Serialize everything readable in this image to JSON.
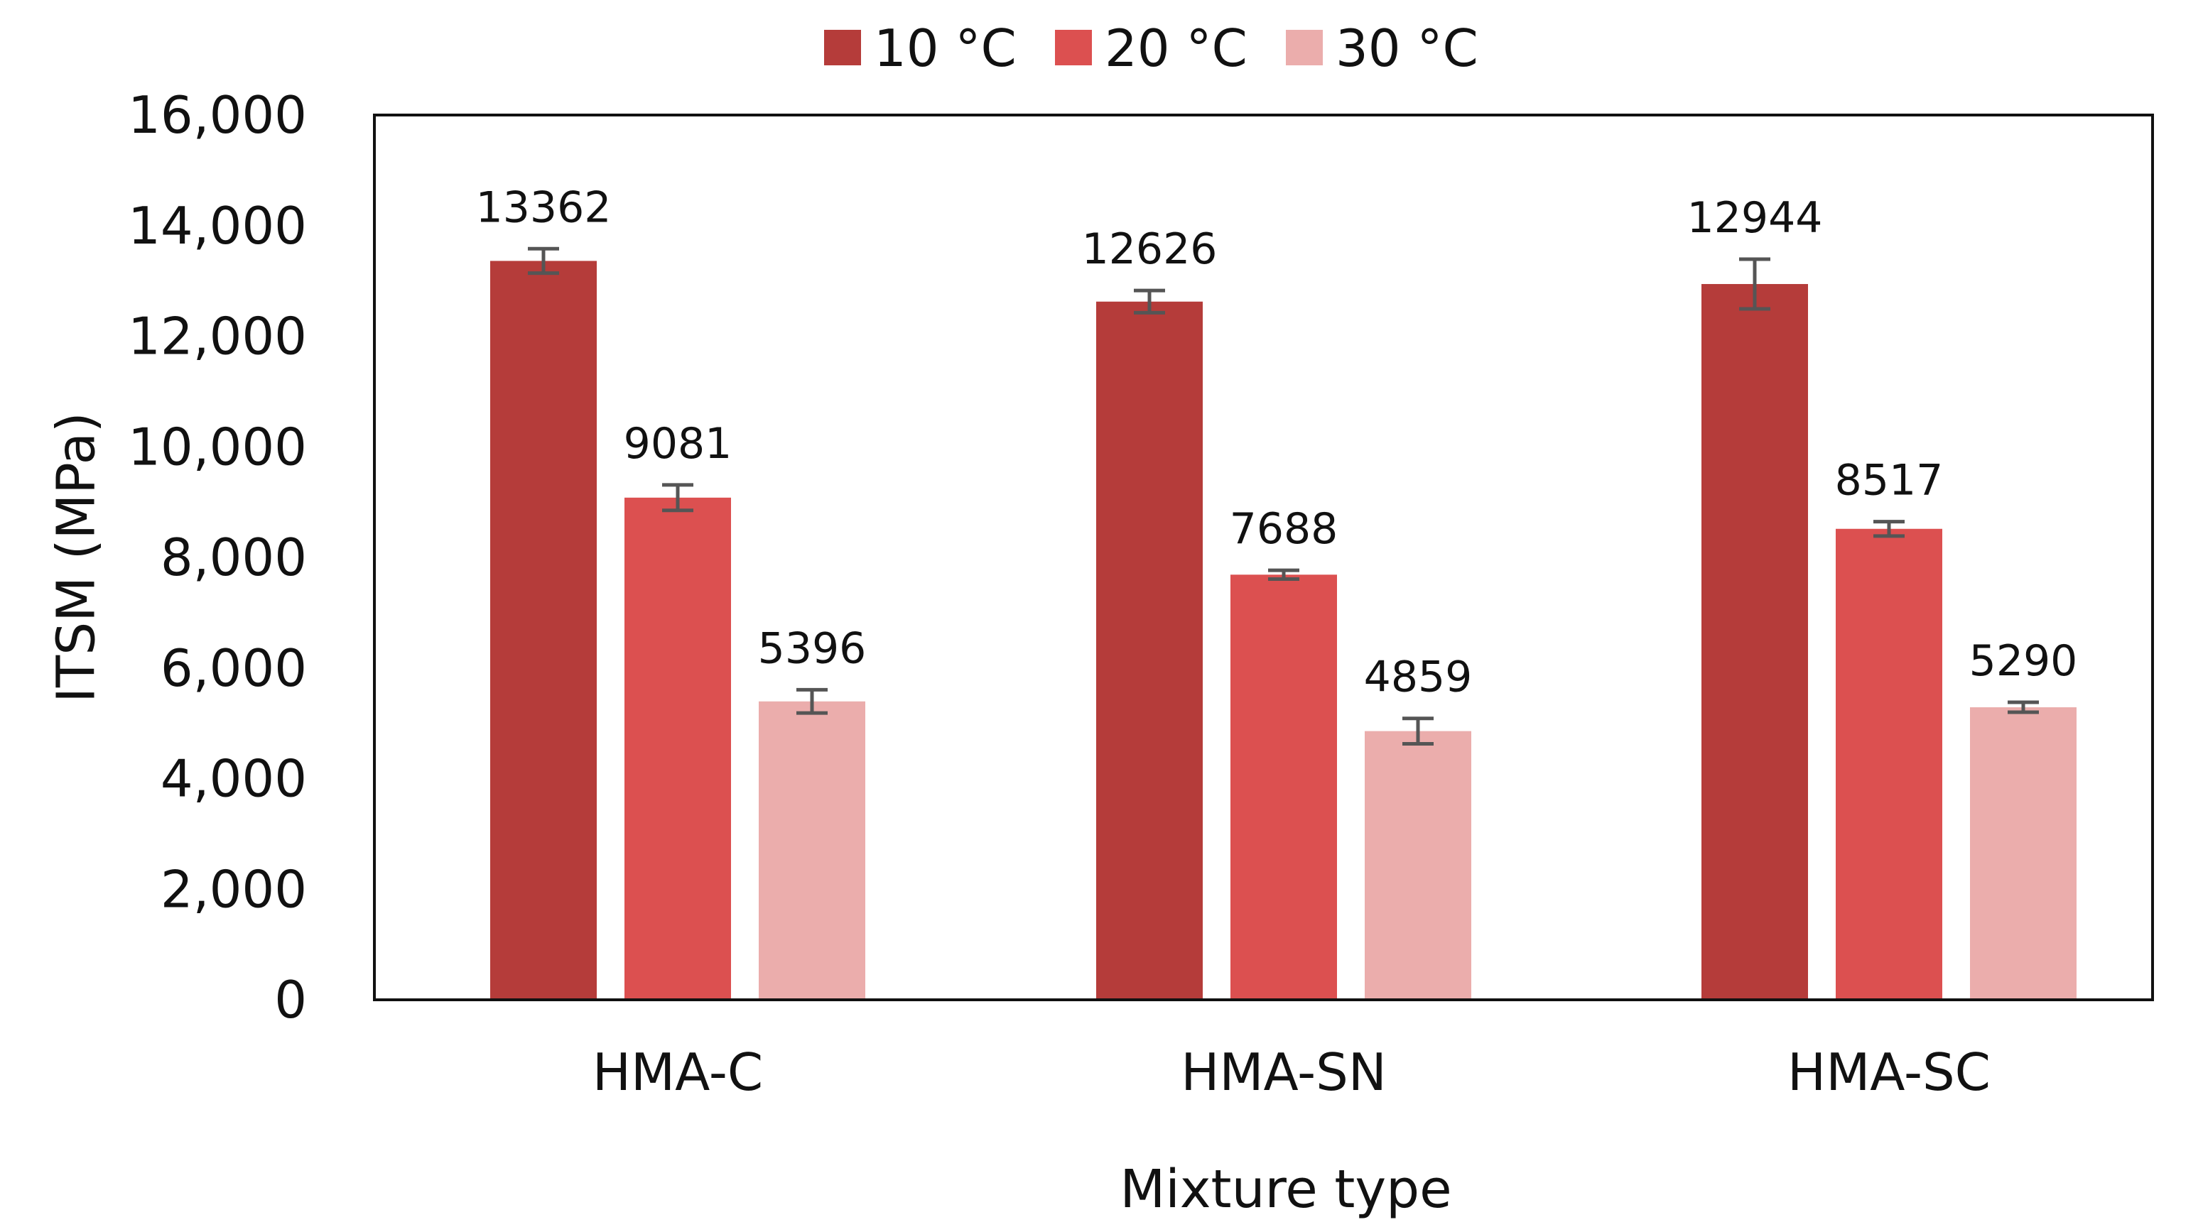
{
  "chart_data": {
    "type": "bar",
    "title": "",
    "xlabel": "Mixture type",
    "ylabel": "ITSM (MPa)",
    "ylim": [
      0,
      16000
    ],
    "yticks": [
      0,
      2000,
      4000,
      6000,
      8000,
      10000,
      12000,
      14000,
      16000
    ],
    "ytick_labels": [
      "0",
      "2,000",
      "4,000",
      "6,000",
      "8,000",
      "10,000",
      "12,000",
      "14,000",
      "16,000"
    ],
    "grid": false,
    "legend_position": "top-center",
    "categories": [
      "HMA-C",
      "HMA-SN",
      "HMA-SC"
    ],
    "series": [
      {
        "name": "10 °C",
        "color": "#b53c3a",
        "values": [
          13362,
          12626,
          12944
        ],
        "labels": [
          "13362",
          "12626",
          "12944"
        ],
        "errors": [
          220,
          200,
          450
        ]
      },
      {
        "name": "20 °C",
        "color": "#dc5050",
        "values": [
          9081,
          7688,
          8517
        ],
        "labels": [
          "9081",
          "7688",
          "8517"
        ],
        "errors": [
          230,
          80,
          130
        ]
      },
      {
        "name": "30 °C",
        "color": "#ebadac",
        "values": [
          5396,
          4859,
          5290
        ],
        "labels": [
          "5396",
          "4859",
          "5290"
        ],
        "errors": [
          210,
          230,
          90
        ]
      }
    ],
    "error_bar_color": "#555555",
    "axis_color": "#111111"
  }
}
